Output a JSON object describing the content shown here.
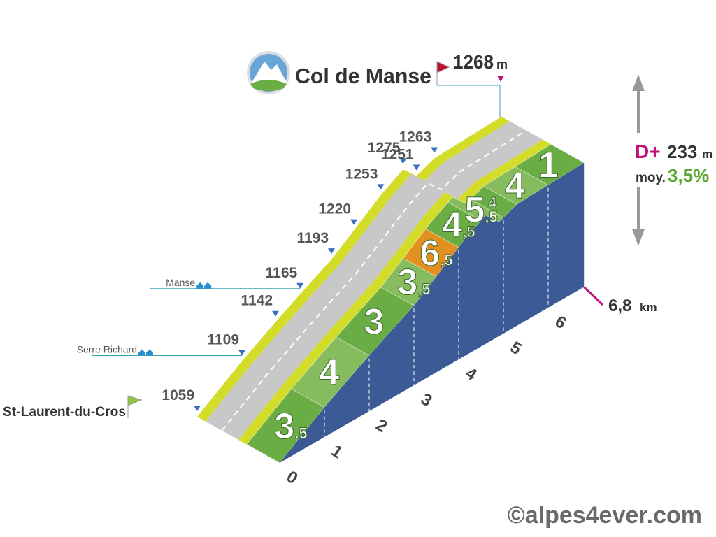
{
  "chart_data": {
    "type": "climb-profile",
    "title": "Col de Manse",
    "summit": {
      "elevation": 1268,
      "unit": "m"
    },
    "start": "St-Laurent-du-Cros",
    "distance": {
      "value": 6.8,
      "label": "6,8",
      "unit": "km"
    },
    "gain": {
      "label": "D+",
      "value": 233,
      "unit": "m"
    },
    "average": {
      "label": "moy.",
      "value": 3.5,
      "value_label": "3,5%"
    },
    "xlim": [
      0,
      6.8
    ],
    "xticks": [
      0,
      1,
      2,
      3,
      4,
      5,
      6
    ],
    "segments": [
      {
        "from": 0,
        "to": 1,
        "gradient": 3.5,
        "label": "3,5",
        "color": "#6aad44"
      },
      {
        "from": 1,
        "to": 2,
        "gradient": 4,
        "label": "4",
        "color": "#86bb5e"
      },
      {
        "from": 2,
        "to": 3,
        "gradient": 3,
        "label": "3",
        "color": "#6aad44"
      },
      {
        "from": 3,
        "to": 3.5,
        "gradient": 3.5,
        "label": "3,5",
        "color": "#86bb5e"
      },
      {
        "from": 3.5,
        "to": 4,
        "gradient": 6.5,
        "label": "6,5",
        "color": "#e2901f"
      },
      {
        "from": 4,
        "to": 4.5,
        "gradient": 4.5,
        "label": "4,5",
        "color": "#6aad44"
      },
      {
        "from": 4.5,
        "to": 5,
        "gradient": 5.5,
        "label": "5,5",
        "color": "#86bb5e"
      },
      {
        "from": 5,
        "to": 5.3,
        "gradient": 4,
        "label": "4",
        "color": "#6aad44"
      },
      {
        "from": 5.3,
        "to": 6,
        "gradient": 4,
        "label": "4",
        "color": "#86bb5e"
      },
      {
        "from": 6,
        "to": 6.8,
        "gradient": 1,
        "label": "1",
        "color": "#6aad44"
      }
    ],
    "spot_heights": [
      {
        "km": 0,
        "elevation": 1059
      },
      {
        "km": 1,
        "elevation": 1109
      },
      {
        "km": 1.75,
        "elevation": 1142
      },
      {
        "km": 2.3,
        "elevation": 1165
      },
      {
        "km": 3,
        "elevation": 1193
      },
      {
        "km": 3.5,
        "elevation": 1220
      },
      {
        "km": 4.1,
        "elevation": 1253
      },
      {
        "km": 4.6,
        "elevation": 1275
      },
      {
        "km": 4.9,
        "elevation": 1251
      },
      {
        "km": 5.3,
        "elevation": 1263
      }
    ],
    "places": [
      {
        "name": "Serre Richard",
        "km": 1
      },
      {
        "name": "Manse",
        "km": 2.3
      }
    ],
    "credit": "©alpes4ever.com"
  }
}
